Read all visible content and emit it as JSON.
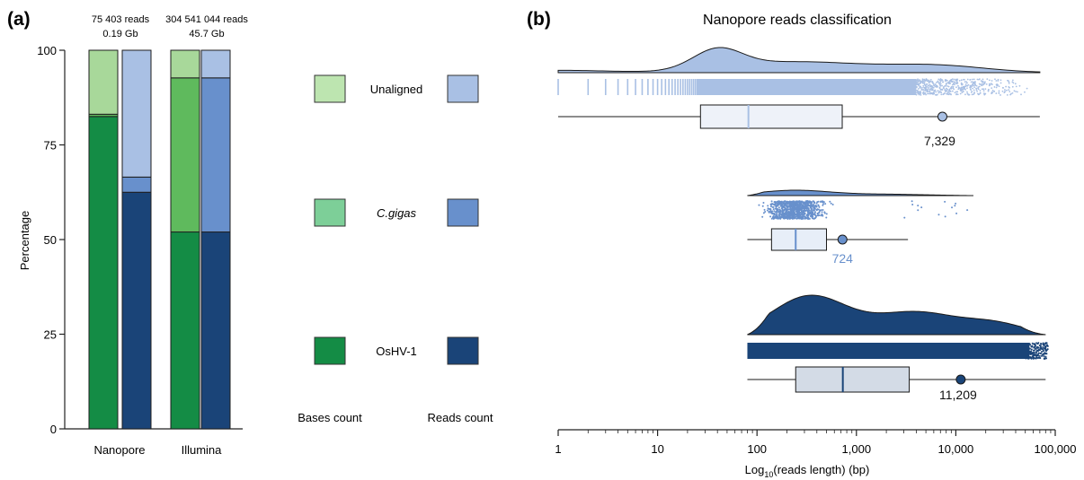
{
  "panel_a": {
    "label": "(a)",
    "header_nanopore": [
      "75 403 reads",
      "0.19 Gb"
    ],
    "header_illumina": [
      "304 541 044 reads",
      "45.7 Gb"
    ],
    "legend_labels": [
      "Unaligned",
      "C.gigas",
      "OsHV-1"
    ],
    "legend_col_labels": [
      "Bases count",
      "Reads count"
    ]
  },
  "panel_b": {
    "label": "(b)",
    "title": "Nanopore reads classification",
    "medians": [
      "7,329",
      "724",
      "11,209"
    ]
  },
  "colors": {
    "bases": {
      "Unaligned": "#a8d89a",
      "C.gigas": "#5fba5d",
      "OsHV-1": "#148c45"
    },
    "reads": {
      "Unaligned": "#a9c0e4",
      "C.gigas": "#6890cc",
      "OsHV-1": "#1a4478"
    },
    "legend_green": {
      "Unaligned": "#bde5b0",
      "C.gigas": "#7dcf98",
      "OsHV-1": "#148c45"
    }
  },
  "chart_data": [
    {
      "type": "bar",
      "stacked": true,
      "categories": [
        "Nanopore",
        "Illumina"
      ],
      "ylabel": "Percentage",
      "ylim": [
        0,
        100
      ],
      "yticks": [
        0,
        25,
        50,
        75,
        100
      ],
      "series": [
        {
          "group": "Bases count",
          "category": "Nanopore",
          "segments": {
            "OsHV-1": 82.5,
            "C.gigas": 0.6,
            "Unaligned": 16.9
          }
        },
        {
          "group": "Reads count",
          "category": "Nanopore",
          "segments": {
            "OsHV-1": 62.5,
            "C.gigas": 4,
            "Unaligned": 33.5
          }
        },
        {
          "group": "Bases count",
          "category": "Illumina",
          "segments": {
            "OsHV-1": 52,
            "C.gigas": 40.7,
            "Unaligned": 7.3
          }
        },
        {
          "group": "Reads count",
          "category": "Illumina",
          "segments": {
            "OsHV-1": 52,
            "C.gigas": 40.7,
            "Unaligned": 7.3
          }
        }
      ]
    },
    {
      "type": "raincloud",
      "title": "Nanopore reads classification",
      "xlabel": "Log10(reads length) (bp)",
      "xscale": "log",
      "xlim": [
        1,
        100000
      ],
      "xticks": [
        1,
        10,
        100,
        1000,
        10000,
        100000
      ],
      "xticklabels": [
        "1",
        "10",
        "100",
        "1,000",
        "10,000",
        "100,000"
      ],
      "series": [
        {
          "name": "Unaligned",
          "color": "#a9c0e4",
          "box_color": "#eef2f9",
          "median_line": "#a9c0e4",
          "min": 1,
          "q1": 27,
          "median": 82,
          "q3": 720,
          "max": 70000,
          "mean_label": "7,329",
          "mean_value": 7329,
          "density_peak": 40,
          "density_range": [
            1,
            70000
          ]
        },
        {
          "name": "C.gigas",
          "color": "#6890cc",
          "box_color": "#e7eef8",
          "median_line": "#6890cc",
          "min": 80,
          "q1": 140,
          "median": 245,
          "q3": 500,
          "max": 3300,
          "mean_label": "724",
          "mean_value": 724,
          "density_peak": 240,
          "density_range": [
            80,
            15000
          ]
        },
        {
          "name": "OsHV-1",
          "color": "#1a4478",
          "box_color": "#d3dbe6",
          "median_line": "#1a4478",
          "min": 80,
          "q1": 245,
          "median": 730,
          "q3": 3400,
          "max": 80000,
          "mean_label": "11,209",
          "mean_value": 11209,
          "density_peak": 340,
          "density_range": [
            80,
            80000
          ]
        }
      ]
    }
  ]
}
